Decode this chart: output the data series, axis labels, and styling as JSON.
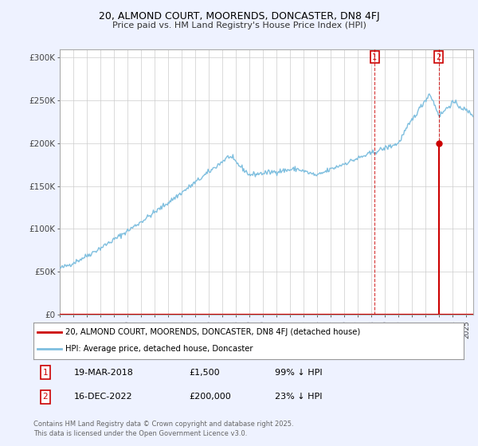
{
  "title": "20, ALMOND COURT, MOORENDS, DONCASTER, DN8 4FJ",
  "subtitle": "Price paid vs. HM Land Registry's House Price Index (HPI)",
  "ylabel_ticks": [
    "£0",
    "£50K",
    "£100K",
    "£150K",
    "£200K",
    "£250K",
    "£300K"
  ],
  "ytick_values": [
    0,
    50000,
    100000,
    150000,
    200000,
    250000,
    300000
  ],
  "ylim": [
    0,
    310000
  ],
  "hpi_color": "#7fbfdf",
  "price_color": "#cc0000",
  "background_color": "#eef2ff",
  "plot_bg_color": "#ffffff",
  "grid_color": "#cccccc",
  "legend_entry1": "20, ALMOND COURT, MOORENDS, DONCASTER, DN8 4FJ (detached house)",
  "legend_entry2": "HPI: Average price, detached house, Doncaster",
  "annotation1_date": "19-MAR-2018",
  "annotation1_price": "£1,500",
  "annotation1_hpi": "99% ↓ HPI",
  "annotation2_date": "16-DEC-2022",
  "annotation2_price": "£200,000",
  "annotation2_hpi": "23% ↓ HPI",
  "footer": "Contains HM Land Registry data © Crown copyright and database right 2025.\nThis data is licensed under the Open Government Licence v3.0.",
  "sale1_date_num": 2018.22,
  "sale1_price": 1500,
  "sale2_date_num": 2022.96,
  "sale2_price": 200000,
  "xmin": 1995,
  "xmax": 2025.5
}
